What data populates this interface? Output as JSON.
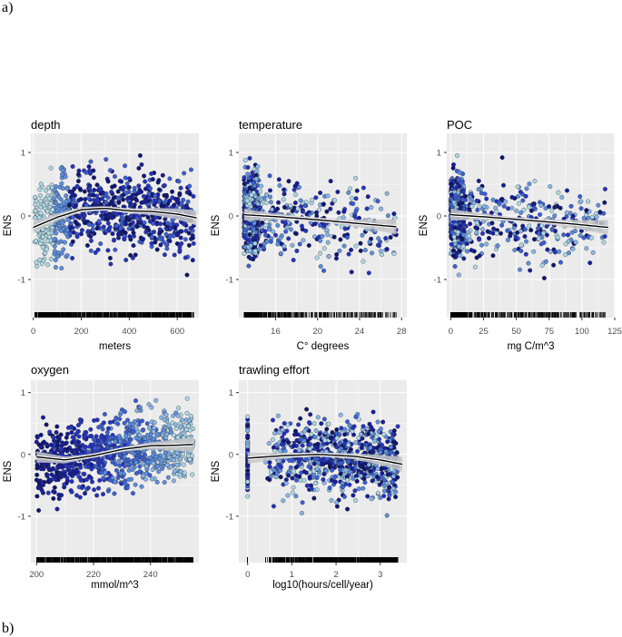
{
  "figure": {
    "label_a": "a)",
    "label_b": "b)"
  },
  "colors": {
    "panel_bg": "#ebebeb",
    "grid": "#ffffff",
    "point_palette": [
      "#add8e6",
      "#87b6e8",
      "#5b8fe0",
      "#3a5fd6",
      "#2433c2",
      "#151d9a",
      "#0d1670"
    ],
    "point_outline": "#2a2a2a",
    "ribbon": "#c8c8c8",
    "line": "#000000"
  },
  "chart_data": [
    {
      "type": "scatter",
      "title": "depth",
      "xlabel": "meters",
      "ylabel": "ENS",
      "xlim": [
        -10,
        690
      ],
      "ylim": [
        -1.6,
        1.3
      ],
      "xticks": [
        0,
        200,
        400,
        600
      ],
      "xtick_labels": [
        "0",
        "200",
        "400",
        "600"
      ],
      "yticks": [
        -1,
        0,
        1
      ],
      "ytick_labels": [
        "-1",
        "0",
        "1"
      ],
      "point_spread": 0.45,
      "x_distribution": "depth",
      "smooth": {
        "x": [
          0,
          100,
          200,
          300,
          400,
          500,
          600,
          680
        ],
        "y": [
          -0.18,
          -0.02,
          0.1,
          0.12,
          0.08,
          0.07,
          0.03,
          -0.03
        ]
      }
    },
    {
      "type": "scatter",
      "title": "temperature",
      "xlabel": "C° degrees",
      "ylabel": "ENS",
      "xlim": [
        12.5,
        28.5
      ],
      "ylim": [
        -1.6,
        1.3
      ],
      "xticks": [
        16,
        20,
        24,
        28
      ],
      "xtick_labels": [
        "16",
        "20",
        "24",
        "28"
      ],
      "yticks": [
        -1,
        0,
        1
      ],
      "ytick_labels": [
        "-1",
        "0",
        "1"
      ],
      "point_spread": 0.42,
      "x_distribution": "temperature",
      "smooth": {
        "x": [
          13,
          16,
          20,
          24,
          27.5
        ],
        "y": [
          0.02,
          -0.01,
          -0.06,
          -0.12,
          -0.17
        ]
      }
    },
    {
      "type": "scatter",
      "title": "POC",
      "xlabel": "mg C/m^3",
      "ylabel": "ENS",
      "xlim": [
        -3,
        125
      ],
      "ylim": [
        -1.6,
        1.3
      ],
      "xticks": [
        0,
        25,
        50,
        75,
        100,
        125
      ],
      "xtick_labels": [
        "0",
        "25",
        "50",
        "75",
        "100",
        "125"
      ],
      "yticks": [
        -1,
        0,
        1
      ],
      "ytick_labels": [
        "-1",
        "0",
        "1"
      ],
      "point_spread": 0.42,
      "x_distribution": "poc",
      "smooth": {
        "x": [
          0,
          30,
          60,
          90,
          120
        ],
        "y": [
          0.02,
          -0.02,
          -0.07,
          -0.12,
          -0.18
        ]
      }
    },
    {
      "type": "scatter",
      "title": "oxygen",
      "xlabel": "mmol/m^3",
      "ylabel": "ENS",
      "xlim": [
        198,
        257
      ],
      "ylim": [
        -1.75,
        1.2
      ],
      "xticks": [
        200,
        220,
        240
      ],
      "xtick_labels": [
        "200",
        "220",
        "240"
      ],
      "yticks": [
        -1,
        0,
        1
      ],
      "ytick_labels": [
        "-1",
        "0",
        "1"
      ],
      "point_spread": 0.42,
      "x_distribution": "oxygen",
      "smooth": {
        "x": [
          200,
          210,
          220,
          230,
          240,
          250,
          255
        ],
        "y": [
          -0.04,
          -0.09,
          -0.02,
          0.08,
          0.14,
          0.15,
          0.16
        ]
      }
    },
    {
      "type": "scatter",
      "title": "trawling effort",
      "xlabel": "log10(hours/cell/year)",
      "ylabel": "ENS",
      "xlim": [
        -0.2,
        3.6
      ],
      "ylim": [
        -1.75,
        1.2
      ],
      "xticks": [
        0,
        1,
        2,
        3
      ],
      "xtick_labels": [
        "0",
        "1",
        "2",
        "3"
      ],
      "yticks": [
        -1,
        0,
        1
      ],
      "ytick_labels": [
        "-1",
        "0",
        "1"
      ],
      "point_spread": 0.42,
      "x_distribution": "trawling",
      "smooth": {
        "x": [
          0,
          0.8,
          1.6,
          2.4,
          3.0,
          3.5
        ],
        "y": [
          -0.06,
          -0.02,
          0.0,
          -0.03,
          -0.09,
          -0.16
        ]
      }
    }
  ]
}
